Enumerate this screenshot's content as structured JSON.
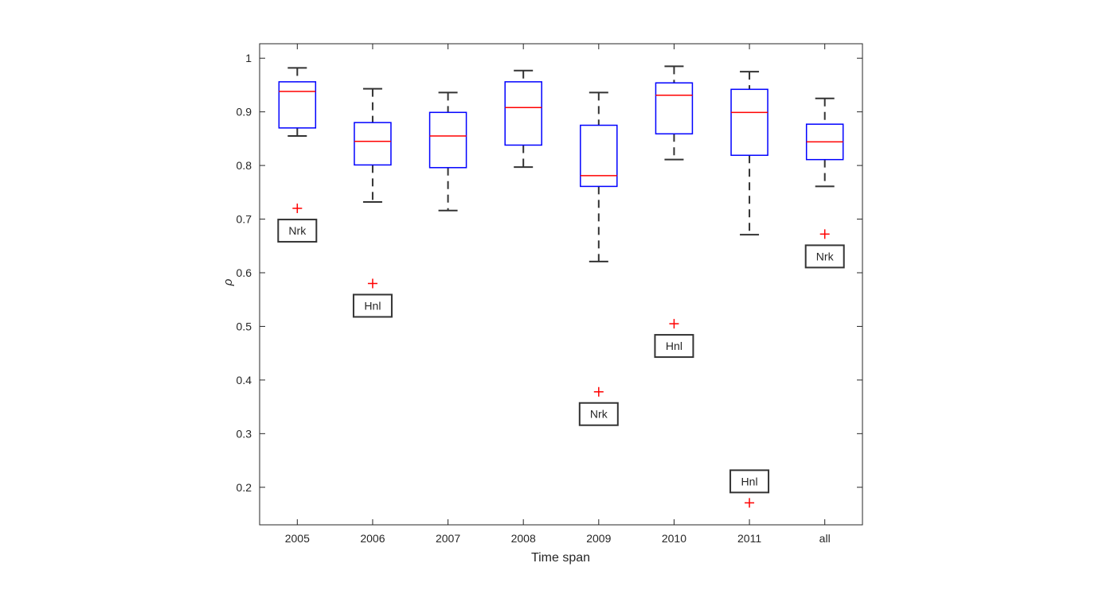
{
  "chart_data": {
    "type": "boxplot",
    "title": "",
    "xlabel": "Time span",
    "ylabel": "ρ",
    "ylim": [
      0.13,
      1.027
    ],
    "yticks": [
      0.2,
      0.3,
      0.4,
      0.5,
      0.6,
      0.7,
      0.8,
      0.9,
      1
    ],
    "ytick_labels": [
      "0.2",
      "0.3",
      "0.4",
      "0.5",
      "0.6",
      "0.7",
      "0.8",
      "0.9",
      "1"
    ],
    "grid": false,
    "categories": [
      "2005",
      "2006",
      "2007",
      "2008",
      "2009",
      "2010",
      "2011",
      "all"
    ],
    "boxes": [
      {
        "whisker_low": 0.855,
        "q1": 0.87,
        "median": 0.938,
        "q3": 0.956,
        "whisker_high": 0.982
      },
      {
        "whisker_low": 0.732,
        "q1": 0.801,
        "median": 0.845,
        "q3": 0.88,
        "whisker_high": 0.943
      },
      {
        "whisker_low": 0.716,
        "q1": 0.796,
        "median": 0.855,
        "q3": 0.899,
        "whisker_high": 0.936
      },
      {
        "whisker_low": 0.797,
        "q1": 0.838,
        "median": 0.908,
        "q3": 0.956,
        "whisker_high": 0.977
      },
      {
        "whisker_low": 0.621,
        "q1": 0.761,
        "median": 0.781,
        "q3": 0.875,
        "whisker_high": 0.936
      },
      {
        "whisker_low": 0.811,
        "q1": 0.859,
        "median": 0.931,
        "q3": 0.954,
        "whisker_high": 0.985
      },
      {
        "whisker_low": 0.671,
        "q1": 0.819,
        "median": 0.899,
        "q3": 0.942,
        "whisker_high": 0.975
      },
      {
        "whisker_low": 0.761,
        "q1": 0.811,
        "median": 0.844,
        "q3": 0.877,
        "whisker_high": 0.925
      }
    ],
    "outliers": [
      {
        "category": "2005",
        "value": 0.72,
        "label": "Nrk",
        "label_side": "below"
      },
      {
        "category": "2006",
        "value": 0.58,
        "label": "Hnl",
        "label_side": "below"
      },
      {
        "category": "2009",
        "value": 0.378,
        "label": "Nrk",
        "label_side": "below"
      },
      {
        "category": "2010",
        "value": 0.505,
        "label": "Hnl",
        "label_side": "below"
      },
      {
        "category": "2011",
        "value": 0.171,
        "label": "Hnl",
        "label_side": "above"
      },
      {
        "category": "all",
        "value": 0.672,
        "label": "Nrk",
        "label_side": "below"
      }
    ],
    "colors": {
      "box": "#0000ff",
      "median": "#ff0000",
      "whisker": "#000000",
      "outlier": "#ff0000",
      "axis": "#262626"
    }
  }
}
